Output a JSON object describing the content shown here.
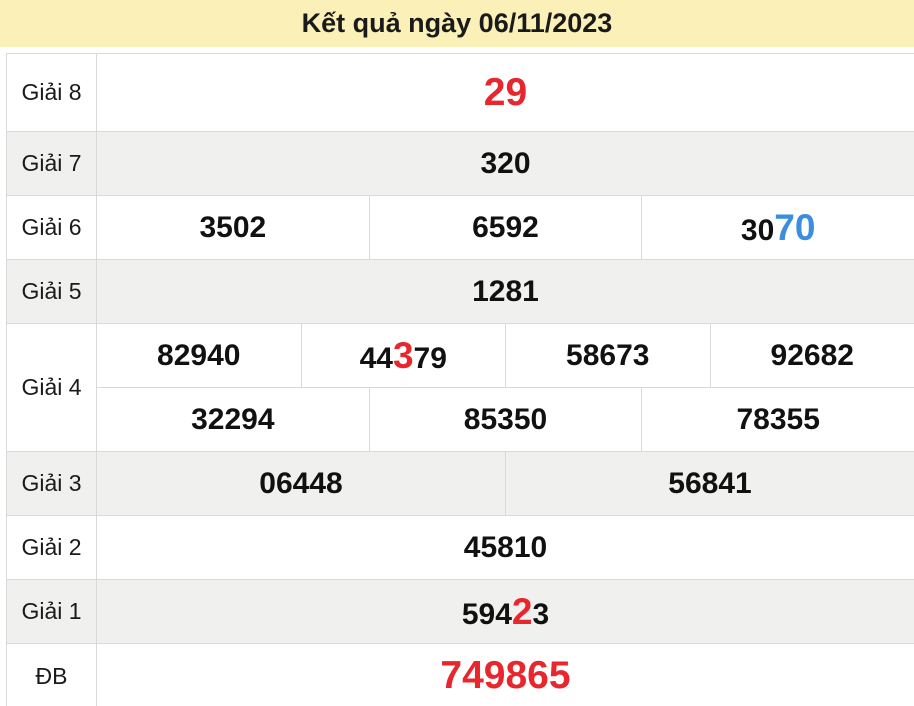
{
  "header": {
    "title": "Kết quả ngày 06/11/2023"
  },
  "colors": {
    "header_bg": "#FBF0B8",
    "title": "#1A1A1A",
    "red": "#E8262D",
    "blue": "#3B8EDE",
    "alt_row_bg": "#F0F0EF",
    "border": "#D9D9D9"
  },
  "results": {
    "rows": [
      {
        "id": "g8",
        "label": "Giải 8",
        "alt": false,
        "xl": true,
        "lines": [
          [
            {
              "parts": [
                {
                  "t": "29",
                  "hl": "red"
                }
              ]
            }
          ]
        ]
      },
      {
        "id": "g7",
        "label": "Giải 7",
        "alt": true,
        "xl": false,
        "lines": [
          [
            {
              "parts": [
                {
                  "t": "320"
                }
              ]
            }
          ]
        ]
      },
      {
        "id": "g6",
        "label": "Giải 6",
        "alt": false,
        "xl": false,
        "lines": [
          [
            {
              "parts": [
                {
                  "t": "3502"
                }
              ]
            },
            {
              "parts": [
                {
                  "t": "6592"
                }
              ]
            },
            {
              "parts": [
                {
                  "t": "30"
                },
                {
                  "t": "70",
                  "hl": "blue"
                }
              ]
            }
          ]
        ]
      },
      {
        "id": "g5",
        "label": "Giải 5",
        "alt": true,
        "xl": false,
        "lines": [
          [
            {
              "parts": [
                {
                  "t": "1281"
                }
              ]
            }
          ]
        ]
      },
      {
        "id": "g4",
        "label": "Giải 4",
        "alt": false,
        "xl": false,
        "lines": [
          [
            {
              "parts": [
                {
                  "t": "82940"
                }
              ]
            },
            {
              "parts": [
                {
                  "t": "44"
                },
                {
                  "t": "3",
                  "hl": "red"
                },
                {
                  "t": "79"
                }
              ]
            },
            {
              "parts": [
                {
                  "t": "58673"
                }
              ]
            },
            {
              "parts": [
                {
                  "t": "92682"
                }
              ]
            }
          ],
          [
            {
              "parts": [
                {
                  "t": "32294"
                }
              ]
            },
            {
              "parts": [
                {
                  "t": "85350"
                }
              ]
            },
            {
              "parts": [
                {
                  "t": "78355"
                }
              ]
            }
          ]
        ]
      },
      {
        "id": "g3",
        "label": "Giải 3",
        "alt": true,
        "xl": false,
        "lines": [
          [
            {
              "parts": [
                {
                  "t": "06448"
                }
              ]
            },
            {
              "parts": [
                {
                  "t": "56841"
                }
              ]
            }
          ]
        ]
      },
      {
        "id": "g2",
        "label": "Giải 2",
        "alt": false,
        "xl": false,
        "lines": [
          [
            {
              "parts": [
                {
                  "t": "45810"
                }
              ]
            }
          ]
        ]
      },
      {
        "id": "g1",
        "label": "Giải 1",
        "alt": true,
        "xl": false,
        "lines": [
          [
            {
              "parts": [
                {
                  "t": "594"
                },
                {
                  "t": "2",
                  "hl": "red"
                },
                {
                  "t": "3"
                }
              ]
            }
          ]
        ]
      },
      {
        "id": "db",
        "label": "ĐB",
        "alt": false,
        "xl": true,
        "lines": [
          [
            {
              "parts": [
                {
                  "t": "749865",
                  "hl": "red"
                }
              ]
            }
          ]
        ]
      }
    ]
  }
}
